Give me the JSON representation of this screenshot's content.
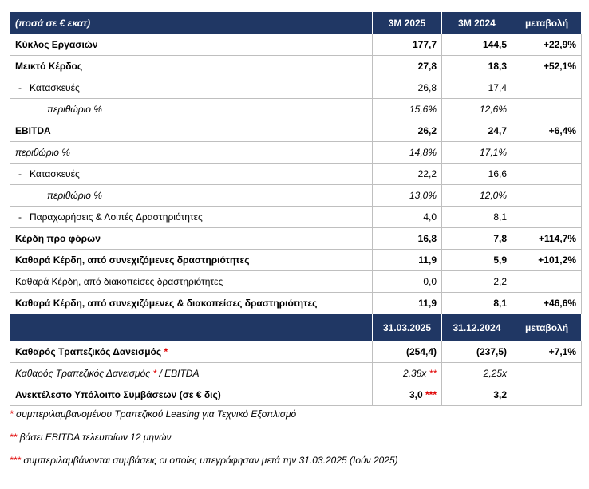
{
  "table": {
    "header": [
      "(ποσά σε € εκατ)",
      "3M 2025",
      "3M 2024",
      "μεταβολή"
    ],
    "rows": [
      [
        "Κύκλος Εργασιών",
        "177,7",
        "144,5",
        "+22,9%"
      ],
      [
        "Μεικτό Κέρδος",
        "27,8",
        "18,3",
        "+52,1%"
      ],
      [
        "-   Κατασκευές",
        "26,8",
        "17,4"
      ],
      [
        "περιθώριο %",
        "15,6%",
        "12,6%"
      ],
      [
        "EBITDA",
        "26,2",
        "24,7",
        "+6,4%"
      ],
      [
        "περιθώριο %",
        "14,8%",
        "17,1%"
      ],
      [
        "-   Κατασκευές",
        "22,2",
        "16,6"
      ],
      [
        "περιθώριο %",
        "13,0%",
        "12,0%"
      ],
      [
        "-   Παραχωρήσεις & Λοιπές Δραστηριότητες",
        "4,0",
        "8,1"
      ],
      [
        "Κέρδη προ φόρων",
        "16,8",
        "7,8",
        "+114,7%"
      ],
      [
        "Καθαρά Κέρδη, από συνεχιζόμενες δραστηριότητες",
        "11,9",
        "5,9",
        "+101,2%"
      ],
      [
        "Καθαρά Κέρδη, από διακοπείσες δραστηριότητες",
        "0,0",
        "2,2"
      ],
      [
        "Καθαρά Κέρδη, από συνεχιζόμενες & διακοπείσες δραστηριότητες",
        "11,9",
        "8,1",
        "+46,6%"
      ]
    ],
    "header2": [
      "31.03.2025",
      "31.12.2024",
      "μεταβολή"
    ],
    "rows2": [
      {
        "label": "Καθαρός Τραπεζικός Δανεισμός",
        "label_note": "*",
        "values": [
          "(254,4)",
          "(237,5)",
          "+7,1%"
        ]
      },
      {
        "label": "Καθαρός Τραπεζικός Δανεισμός",
        "label_note": "*",
        "label_suffix": "/ EBITDA",
        "values": [
          "2,38x",
          "2,25x"
        ],
        "value_note": "**"
      },
      {
        "label": "Ανεκτέλεστο Υπόλοιπο Συμβάσεων (σε € δις)",
        "values": [
          "3,0",
          "3,2"
        ],
        "value_note": "***"
      }
    ]
  },
  "footnotes": [
    {
      "marker": "*",
      "text": "συμπεριλαμβανομένου Τραπεζικού Leasing για Τεχνικό Εξοπλισμό"
    },
    {
      "marker": "**",
      "text": "βάσει EBITDA τελευταίων 12 μηνών"
    },
    {
      "marker": "***",
      "text": "συμπεριλαμβάνονται συμβάσεις οι οποίες υπεγράφησαν μετά την 31.03.2025 (Ιούν 2025)"
    }
  ]
}
